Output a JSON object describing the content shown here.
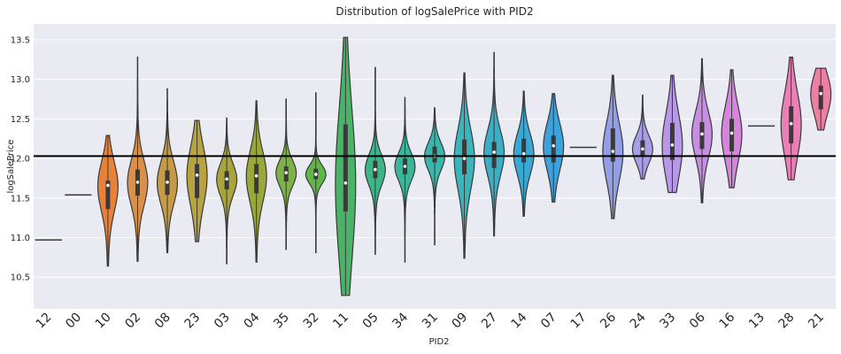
{
  "chart_data": {
    "type": "violin",
    "title": "Distribution of logSalePrice with PID2",
    "xlabel": "PID2",
    "ylabel": "logSalePrice",
    "ylim": [
      10.1,
      13.7
    ],
    "yticks": [
      "10.5",
      "11.0",
      "11.5",
      "12.0",
      "12.5",
      "13.0",
      "13.5"
    ],
    "reference_line": 12.03,
    "grid": true,
    "categories": [
      "12",
      "00",
      "10",
      "02",
      "08",
      "23",
      "03",
      "04",
      "35",
      "32",
      "11",
      "05",
      "34",
      "31",
      "09",
      "27",
      "14",
      "07",
      "17",
      "26",
      "24",
      "33",
      "06",
      "16",
      "13",
      "28",
      "21"
    ],
    "colors": [
      "#5a7fd4",
      "#4e73c8",
      "#e8823a",
      "#d9904a",
      "#c79b45",
      "#b8a33f",
      "#a9a53c",
      "#9aa83b",
      "#7fb14a",
      "#5fb74a",
      "#47b565",
      "#3db58a",
      "#3cb69a",
      "#3bb6ab",
      "#3ab5bb",
      "#3aafc6",
      "#3aa8d4",
      "#3ca2dc",
      "#7a9ce0",
      "#949ee6",
      "#a89ee8",
      "#b897e6",
      "#c78ee2",
      "#d585dd",
      "#e27fca",
      "#e87fb5",
      "#ec7fa2"
    ],
    "series": [
      {
        "cat": "12",
        "min": 10.97,
        "max": 10.97,
        "q1": 10.97,
        "median": 10.97,
        "q3": 10.97
      },
      {
        "cat": "00",
        "min": 11.54,
        "max": 11.54,
        "q1": 11.54,
        "median": 11.54,
        "q3": 11.54
      },
      {
        "cat": "10",
        "min": 10.64,
        "max": 12.29,
        "q1": 11.36,
        "median": 11.66,
        "q3": 11.72
      },
      {
        "cat": "02",
        "min": 10.7,
        "max": 13.28,
        "q1": 11.53,
        "median": 11.7,
        "q3": 11.86
      },
      {
        "cat": "08",
        "min": 10.81,
        "max": 12.88,
        "q1": 11.54,
        "median": 11.7,
        "q3": 11.85
      },
      {
        "cat": "23",
        "min": 10.95,
        "max": 12.48,
        "q1": 11.5,
        "median": 11.79,
        "q3": 11.93
      },
      {
        "cat": "03",
        "min": 10.67,
        "max": 12.51,
        "q1": 11.61,
        "median": 11.74,
        "q3": 11.84
      },
      {
        "cat": "04",
        "min": 10.69,
        "max": 12.73,
        "q1": 11.56,
        "median": 11.78,
        "q3": 11.93
      },
      {
        "cat": "35",
        "min": 10.85,
        "max": 12.75,
        "q1": 11.71,
        "median": 11.82,
        "q3": 11.9
      },
      {
        "cat": "32",
        "min": 10.81,
        "max": 12.83,
        "q1": 11.74,
        "median": 11.8,
        "q3": 11.87
      },
      {
        "cat": "11",
        "min": 10.27,
        "max": 13.53,
        "q1": 11.33,
        "median": 11.69,
        "q3": 12.43
      },
      {
        "cat": "05",
        "min": 10.79,
        "max": 13.15,
        "q1": 11.75,
        "median": 11.86,
        "q3": 11.97
      },
      {
        "cat": "34",
        "min": 10.69,
        "max": 12.77,
        "q1": 11.8,
        "median": 11.9,
        "q3": 12.0
      },
      {
        "cat": "31",
        "min": 10.91,
        "max": 12.64,
        "q1": 11.95,
        "median": 12.03,
        "q3": 12.15
      },
      {
        "cat": "09",
        "min": 10.74,
        "max": 13.08,
        "q1": 11.8,
        "median": 12.0,
        "q3": 12.24
      },
      {
        "cat": "27",
        "min": 11.02,
        "max": 13.34,
        "q1": 11.88,
        "median": 12.08,
        "q3": 12.21
      },
      {
        "cat": "14",
        "min": 11.27,
        "max": 12.85,
        "q1": 11.95,
        "median": 12.06,
        "q3": 12.25
      },
      {
        "cat": "07",
        "min": 11.45,
        "max": 12.82,
        "q1": 11.95,
        "median": 12.16,
        "q3": 12.29
      },
      {
        "cat": "17",
        "min": 12.14,
        "max": 12.14,
        "q1": 12.14,
        "median": 12.14,
        "q3": 12.14
      },
      {
        "cat": "26",
        "min": 11.24,
        "max": 13.05,
        "q1": 11.96,
        "median": 12.09,
        "q3": 12.38
      },
      {
        "cat": "24",
        "min": 11.74,
        "max": 12.8,
        "q1": 12.03,
        "median": 12.12,
        "q3": 12.23
      },
      {
        "cat": "33",
        "min": 11.57,
        "max": 13.05,
        "q1": 11.98,
        "median": 12.17,
        "q3": 12.45
      },
      {
        "cat": "06",
        "min": 11.44,
        "max": 13.26,
        "q1": 12.12,
        "median": 12.31,
        "q3": 12.46
      },
      {
        "cat": "16",
        "min": 11.63,
        "max": 13.12,
        "q1": 12.09,
        "median": 12.32,
        "q3": 12.5
      },
      {
        "cat": "13",
        "min": 12.41,
        "max": 12.41,
        "q1": 12.41,
        "median": 12.41,
        "q3": 12.41
      },
      {
        "cat": "28",
        "min": 11.73,
        "max": 13.28,
        "q1": 12.19,
        "median": 12.44,
        "q3": 12.66
      },
      {
        "cat": "21",
        "min": 12.36,
        "max": 13.14,
        "q1": 12.62,
        "median": 12.82,
        "q3": 12.92
      }
    ]
  }
}
